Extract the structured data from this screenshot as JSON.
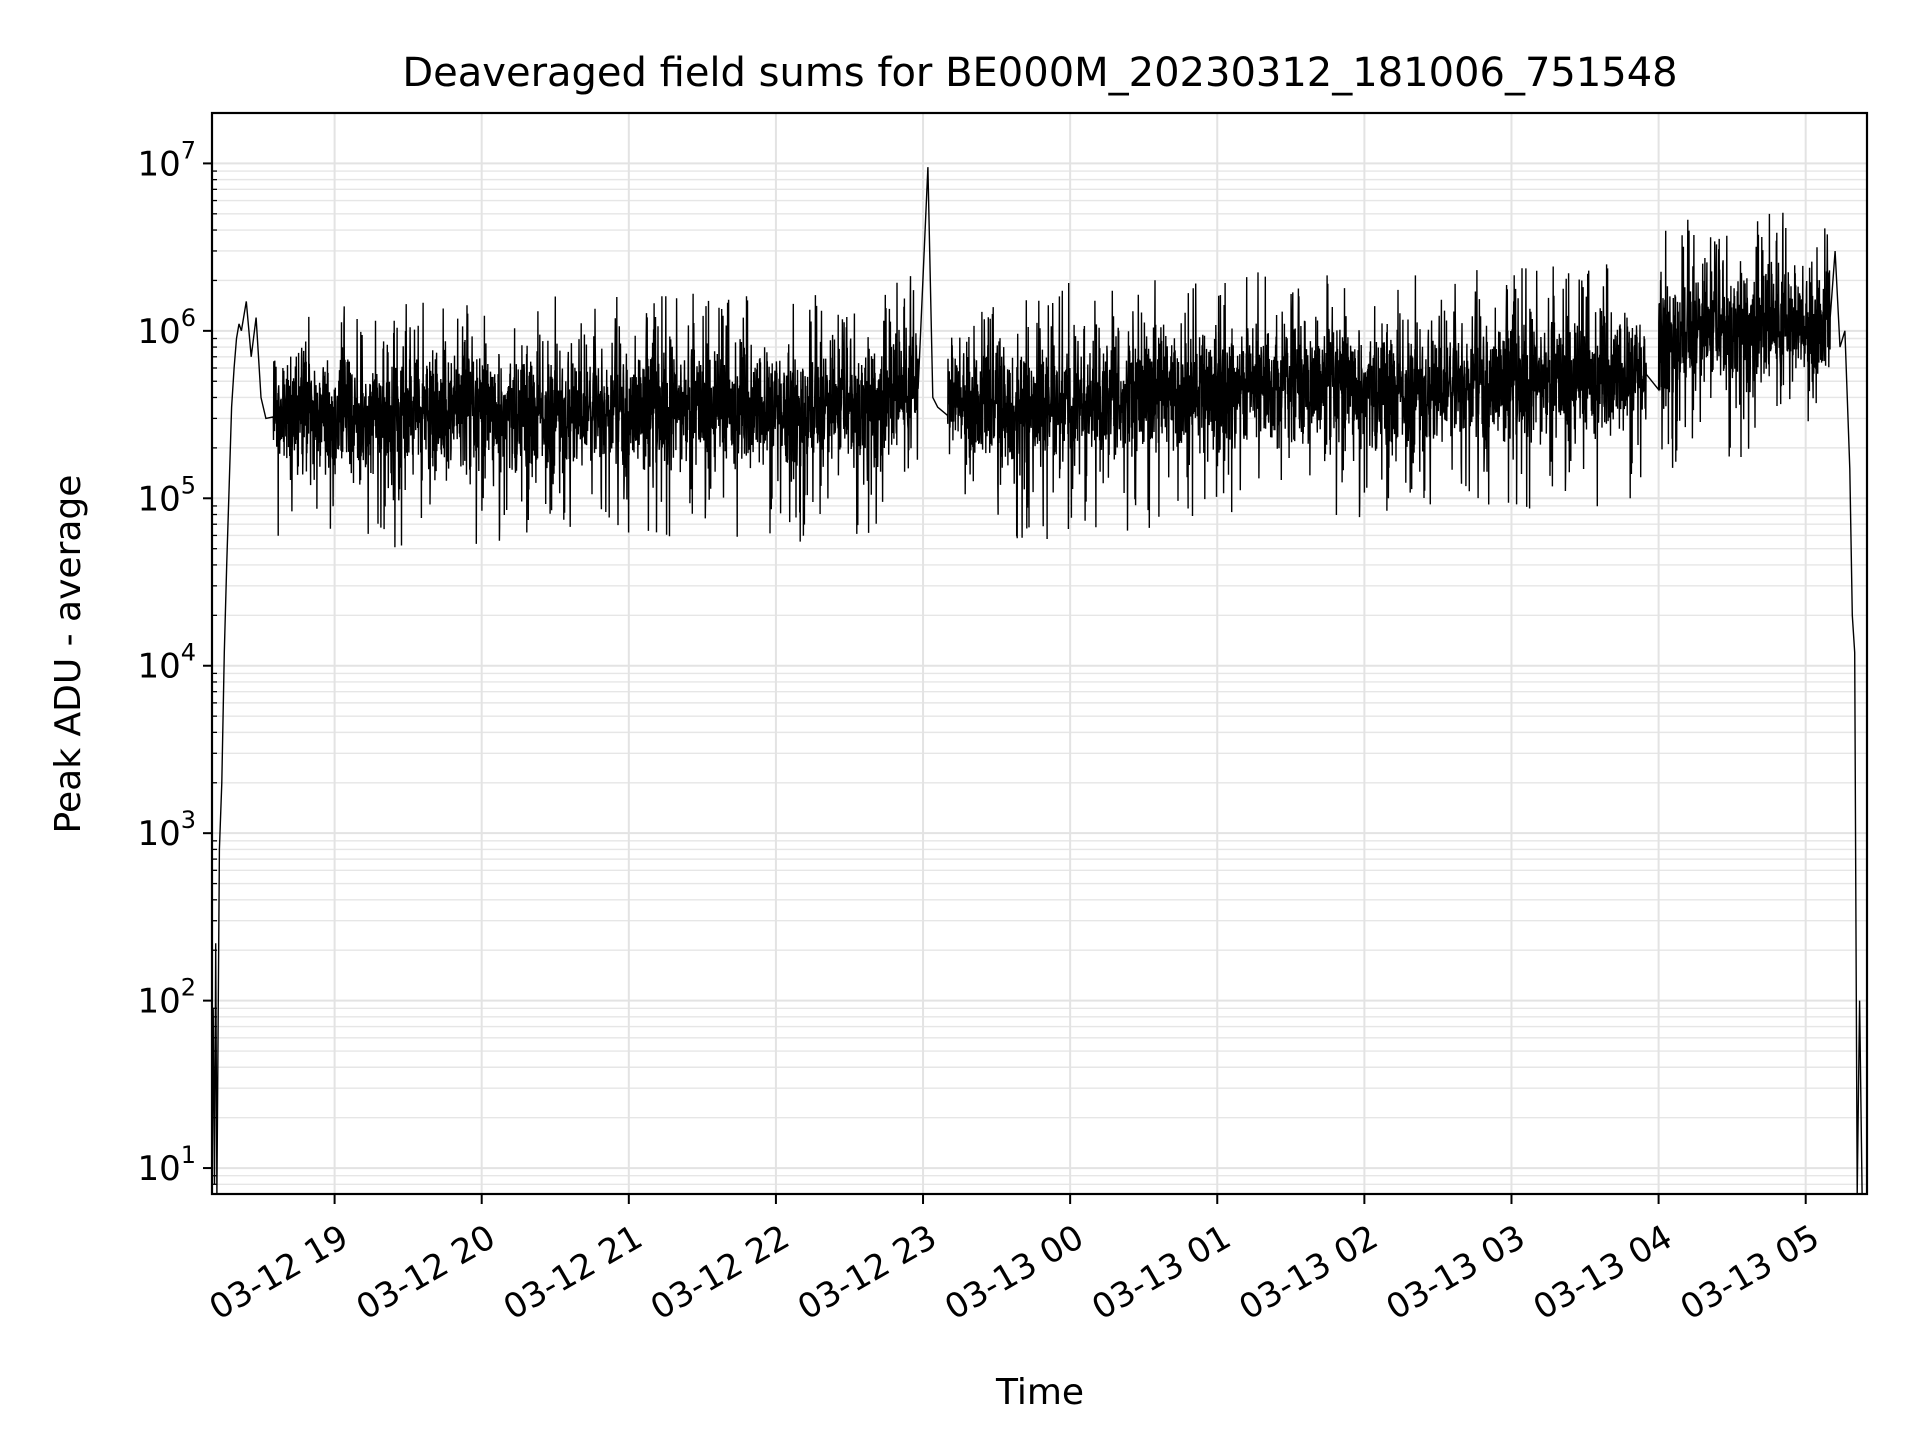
{
  "chart_data": {
    "type": "line",
    "title": "Deaveraged field sums for BE000M_20230312_181006_751548",
    "xlabel": "Time",
    "ylabel": "Peak ADU - average",
    "xlim": [
      "2023-03-12 18:10",
      "2023-03-13 05:25"
    ],
    "ylim": [
      7,
      20000000
    ],
    "yscale": "log",
    "grid": true,
    "line_color": "#000000",
    "x_ticks": [
      {
        "t": "2023-03-12 19:00",
        "label": "03-12 19"
      },
      {
        "t": "2023-03-12 20:00",
        "label": "03-12 20"
      },
      {
        "t": "2023-03-12 21:00",
        "label": "03-12 21"
      },
      {
        "t": "2023-03-12 22:00",
        "label": "03-12 22"
      },
      {
        "t": "2023-03-12 23:00",
        "label": "03-12 23"
      },
      {
        "t": "2023-03-13 00:00",
        "label": "03-13 00"
      },
      {
        "t": "2023-03-13 01:00",
        "label": "03-13 01"
      },
      {
        "t": "2023-03-13 02:00",
        "label": "03-13 02"
      },
      {
        "t": "2023-03-13 03:00",
        "label": "03-13 03"
      },
      {
        "t": "2023-03-13 04:00",
        "label": "03-13 04"
      },
      {
        "t": "2023-03-13 05:00",
        "label": "03-13 05"
      }
    ],
    "y_ticks": [
      {
        "value": 10,
        "base": "10",
        "exp": "1"
      },
      {
        "value": 100,
        "base": "10",
        "exp": "2"
      },
      {
        "value": 1000,
        "base": "10",
        "exp": "3"
      },
      {
        "value": 10000,
        "base": "10",
        "exp": "4"
      },
      {
        "value": 100000,
        "base": "10",
        "exp": "5"
      },
      {
        "value": 1000000,
        "base": "10",
        "exp": "6"
      },
      {
        "value": 10000000,
        "base": "10",
        "exp": "7"
      }
    ],
    "series": [
      {
        "x": [
          "2023-03-12 18:10:00",
          "2023-03-12 18:10:30",
          "2023-03-12 18:11:00",
          "2023-03-12 18:11:30",
          "2023-03-12 18:12:00",
          "2023-03-12 18:13:00",
          "2023-03-12 18:14:00",
          "2023-03-12 18:15:00",
          "2023-03-12 18:16:00",
          "2023-03-12 18:17:00",
          "2023-03-12 18:18:00",
          "2023-03-12 18:19:00",
          "2023-03-12 18:20:00",
          "2023-03-12 18:21:00",
          "2023-03-12 18:22:00",
          "2023-03-12 18:24:00",
          "2023-03-12 18:26:00",
          "2023-03-12 18:28:00",
          "2023-03-12 18:30:00",
          "2023-03-12 18:32:00",
          "2023-03-12 18:35:00",
          "2023-03-12 18:45:00",
          "2023-03-12 19:00:00",
          "2023-03-12 19:30:00",
          "2023-03-12 20:00:00",
          "2023-03-12 20:30:00",
          "2023-03-12 21:00:00",
          "2023-03-12 21:30:00",
          "2023-03-12 22:00:00",
          "2023-03-12 22:30:00",
          "2023-03-12 22:58:00",
          "2023-03-12 23:02:00",
          "2023-03-12 23:04:00",
          "2023-03-12 23:06:00",
          "2023-03-12 23:10:00",
          "2023-03-12 23:30:00",
          "2023-03-12 23:50:00",
          "2023-03-13 00:30:00",
          "2023-03-13 01:00:00",
          "2023-03-13 01:30:00",
          "2023-03-13 02:00:00",
          "2023-03-13 02:30:00",
          "2023-03-13 03:00:00",
          "2023-03-13 03:30:00",
          "2023-03-13 03:55:00",
          "2023-03-13 04:00:00",
          "2023-03-13 04:20:00",
          "2023-03-13 04:40:00",
          "2023-03-13 05:00:00",
          "2023-03-13 05:10:00",
          "2023-03-13 05:12:00",
          "2023-03-13 05:14:00",
          "2023-03-13 05:16:00",
          "2023-03-13 05:18:00",
          "2023-03-13 05:19:00",
          "2023-03-13 05:20:00",
          "2023-03-13 05:21:00",
          "2023-03-13 05:22:00",
          "2023-03-13 05:23:00"
        ],
        "y": [
          7,
          90,
          8,
          220,
          7,
          800,
          2000,
          12000,
          40000,
          120000,
          350000,
          600000,
          900000,
          1100000,
          1000000,
          1500000,
          700000,
          1200000,
          400000,
          300000,
          350000,
          320000,
          300000,
          320000,
          300000,
          330000,
          320000,
          340000,
          330000,
          350000,
          450000,
          9500000,
          400000,
          350000,
          380000,
          360000,
          350000,
          400000,
          450000,
          500000,
          420000,
          450000,
          480000,
          500000,
          550000,
          900000,
          1000000,
          1100000,
          1000000,
          1200000,
          3000000,
          800000,
          1000000,
          150000,
          20000,
          12000,
          7,
          100,
          7
        ]
      }
    ]
  }
}
